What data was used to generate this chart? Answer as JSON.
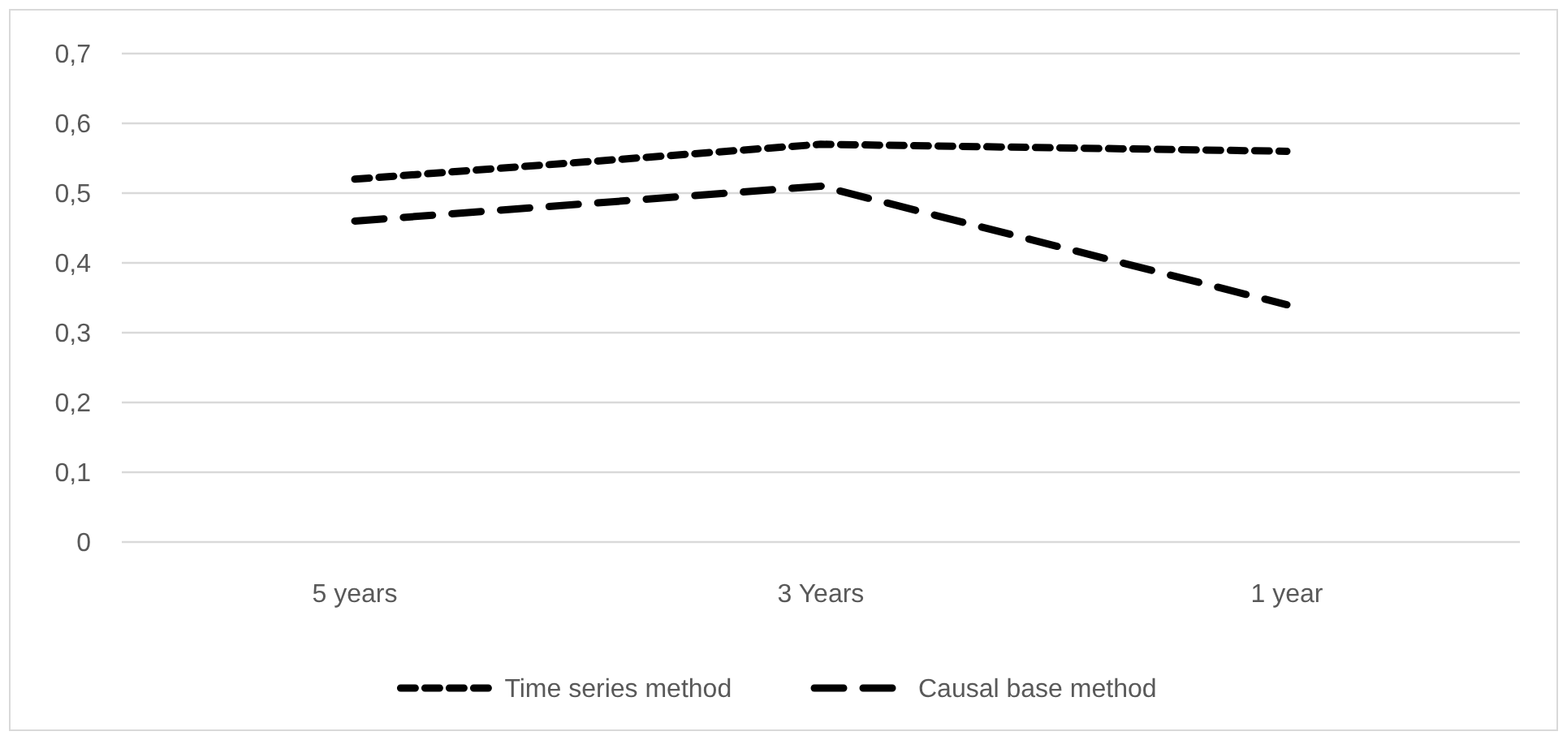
{
  "chart_data": {
    "type": "line",
    "categories": [
      "5 years",
      "3 Years",
      "1 year"
    ],
    "series": [
      {
        "name": "Time series method",
        "color": "#000000",
        "line_style": "dotted",
        "values": [
          0.52,
          0.57,
          0.56
        ]
      },
      {
        "name": "Causal base method",
        "color": "#000000",
        "line_style": "dashed",
        "values": [
          0.46,
          0.51,
          0.34
        ]
      }
    ],
    "ylim": [
      0,
      0.7
    ],
    "yticks": [
      {
        "value": 0,
        "label": "0"
      },
      {
        "value": 0.1,
        "label": "0,1"
      },
      {
        "value": 0.2,
        "label": "0,2"
      },
      {
        "value": 0.3,
        "label": "0,3"
      },
      {
        "value": 0.4,
        "label": "0,4"
      },
      {
        "value": 0.5,
        "label": "0,5"
      },
      {
        "value": 0.6,
        "label": "0,6"
      },
      {
        "value": 0.7,
        "label": "0,7"
      }
    ],
    "grid": "y",
    "legend": "bottom",
    "marker": "none"
  }
}
